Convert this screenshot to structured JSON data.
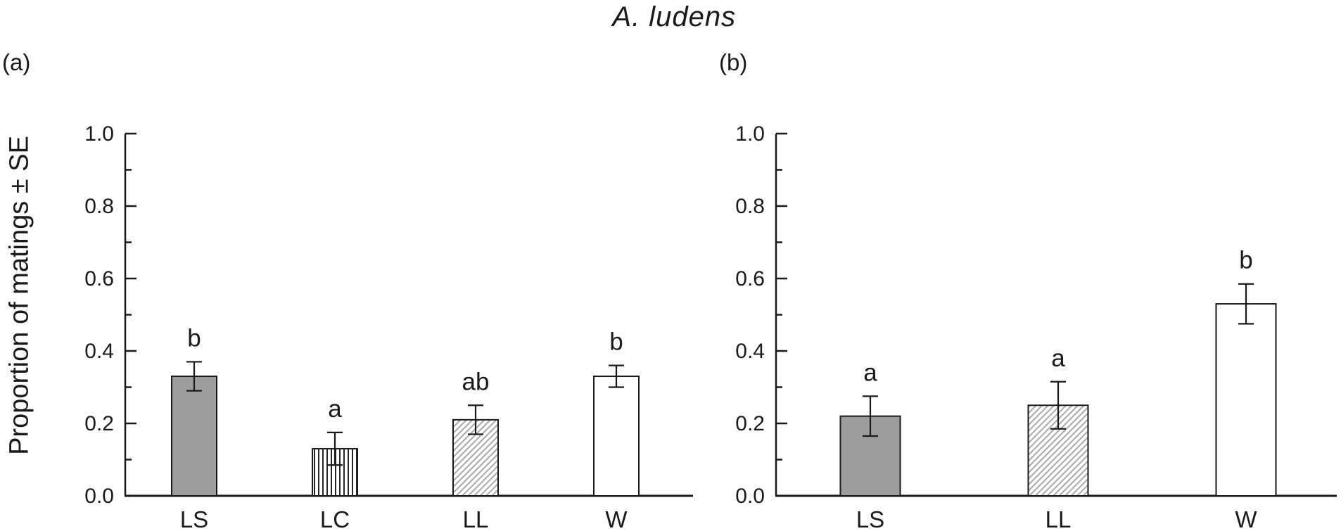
{
  "figure": {
    "title": "A. ludens",
    "y_axis_label": "Proportion of matings ± SE"
  },
  "colors": {
    "axis": "#1a1a1a",
    "bar_outline": "#1a1a1a",
    "bar_solid_gray": "#9d9d9d",
    "bar_white": "#ffffff",
    "hatch_line_gray": "#a5a5a5",
    "stripe_line_black": "#1a1a1a",
    "error_bar": "#1a1a1a"
  },
  "chart_data": [
    {
      "type": "bar",
      "panel_label": "(a)",
      "categories": [
        "LS",
        "LC",
        "LL",
        "W"
      ],
      "series": [
        {
          "name": "proportion_of_matings",
          "values": [
            0.33,
            0.13,
            0.21,
            0.33
          ]
        }
      ],
      "errors_se": [
        0.04,
        0.045,
        0.04,
        0.03
      ],
      "significance_letters": [
        "b",
        "a",
        "ab",
        "b"
      ],
      "bar_styles": [
        "solid-gray",
        "vertical-stripes",
        "diagonal-hatch",
        "white"
      ],
      "xlabel": "",
      "ylabel": "Proportion of matings ± SE",
      "ylim": [
        0.0,
        1.0
      ],
      "ytick_labels": [
        "0.0",
        "0.2",
        "0.4",
        "0.6",
        "0.8",
        "1.0"
      ],
      "ytick_major_step": 0.2,
      "ytick_minor_step": 0.1,
      "grid": "off",
      "legend": "none"
    },
    {
      "type": "bar",
      "panel_label": "(b)",
      "categories": [
        "LS",
        "LL",
        "W"
      ],
      "series": [
        {
          "name": "proportion_of_matings",
          "values": [
            0.22,
            0.25,
            0.53
          ]
        }
      ],
      "errors_se": [
        0.055,
        0.065,
        0.055
      ],
      "significance_letters": [
        "a",
        "a",
        "b"
      ],
      "bar_styles": [
        "solid-gray",
        "diagonal-hatch",
        "white"
      ],
      "xlabel": "",
      "ylabel": "Proportion of matings ± SE",
      "ylim": [
        0.0,
        1.0
      ],
      "ytick_labels": [
        "0.0",
        "0.2",
        "0.4",
        "0.6",
        "0.8",
        "1.0"
      ],
      "ytick_major_step": 0.2,
      "ytick_minor_step": 0.1,
      "grid": "off",
      "legend": "none"
    }
  ]
}
